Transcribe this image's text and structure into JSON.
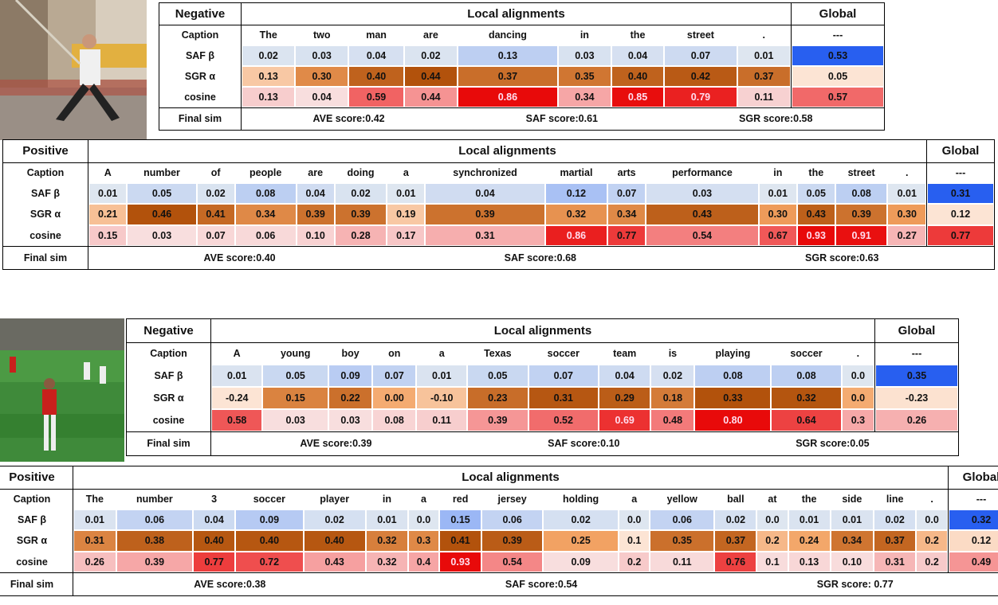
{
  "panels": [
    {
      "label": "Negative",
      "local_header": "Local alignments",
      "global_header": "Global",
      "caption_label": "Caption",
      "words": [
        "The",
        "two",
        "man",
        "are",
        "dancing",
        "in",
        "the",
        "street",
        "."
      ],
      "global_word": "---",
      "rows": [
        {
          "label": "SAF β",
          "local": [
            "0.02",
            "0.03",
            "0.04",
            "0.02",
            "0.13",
            "0.03",
            "0.04",
            "0.07",
            "0.01"
          ],
          "global": "0.53"
        },
        {
          "label": "SGR α",
          "local": [
            "0.13",
            "0.30",
            "0.40",
            "0.44",
            "0.37",
            "0.35",
            "0.40",
            "0.42",
            "0.37"
          ],
          "global": "0.05"
        },
        {
          "label": "cosine",
          "local": [
            "0.13",
            "0.04",
            "0.59",
            "0.44",
            "0.86",
            "0.34",
            "0.85",
            "0.79",
            "0.11"
          ],
          "global": "0.57"
        }
      ],
      "final_label": "Final sim",
      "scores": [
        "AVE score:0.42",
        "SAF score:0.61",
        "SGR score:0.58"
      ]
    },
    {
      "label": "Positive",
      "local_header": "Local alignments",
      "global_header": "Global",
      "caption_label": "Caption",
      "words": [
        "A",
        "number",
        "of",
        "people",
        "are",
        "doing",
        "a",
        "synchronized",
        "martial",
        "arts",
        "performance",
        "in",
        "the",
        "street",
        "."
      ],
      "global_word": "---",
      "rows": [
        {
          "label": "SAF β",
          "local": [
            "0.01",
            "0.05",
            "0.02",
            "0.08",
            "0.04",
            "0.02",
            "0.01",
            "0.04",
            "0.12",
            "0.07",
            "0.03",
            "0.01",
            "0.05",
            "0.08",
            "0.01"
          ],
          "global": "0.31"
        },
        {
          "label": "SGR α",
          "local": [
            "0.21",
            "0.46",
            "0.41",
            "0.34",
            "0.39",
            "0.39",
            "0.19",
            "0.39",
            "0.32",
            "0.34",
            "0.43",
            "0.30",
            "0.43",
            "0.39",
            "0.30"
          ],
          "global": "0.12"
        },
        {
          "label": "cosine",
          "local": [
            "0.15",
            "0.03",
            "0.07",
            "0.06",
            "0.10",
            "0.28",
            "0.17",
            "0.31",
            "0.86",
            "0.77",
            "0.54",
            "0.67",
            "0.93",
            "0.91",
            "0.27"
          ],
          "global": "0.77"
        }
      ],
      "final_label": "Final sim",
      "scores": [
        "AVE score:0.40",
        "SAF score:0.68",
        "SGR score:0.63"
      ]
    },
    {
      "label": "Negative",
      "local_header": "Local alignments",
      "global_header": "Global",
      "caption_label": "Caption",
      "words": [
        "A",
        "young",
        "boy",
        "on",
        "a",
        "Texas",
        "soccer",
        "team",
        "is",
        "playing",
        "soccer",
        "."
      ],
      "global_word": "---",
      "rows": [
        {
          "label": "SAF β",
          "local": [
            "0.01",
            "0.05",
            "0.09",
            "0.07",
            "0.01",
            "0.05",
            "0.07",
            "0.04",
            "0.02",
            "0.08",
            "0.08",
            "0.0"
          ],
          "global": "0.35"
        },
        {
          "label": "SGR α",
          "local": [
            "-0.24",
            "0.15",
            "0.22",
            "0.00",
            "-0.10",
            "0.23",
            "0.31",
            "0.29",
            "0.18",
            "0.33",
            "0.32",
            "0.0"
          ],
          "global": "-0.23"
        },
        {
          "label": "cosine",
          "local": [
            "0.58",
            "0.03",
            "0.03",
            "0.08",
            "0.11",
            "0.39",
            "0.52",
            "0.69",
            "0.48",
            "0.80",
            "0.64",
            "0.3"
          ],
          "global": "0.26"
        }
      ],
      "final_label": "Final sim",
      "scores": [
        "AVE score:0.39",
        "SAF score:0.10",
        "SGR score:0.05"
      ]
    },
    {
      "label": "Positive",
      "local_header": "Local alignments",
      "global_header": "Global",
      "caption_label": "Caption",
      "words": [
        "The",
        "number",
        "3",
        "soccer",
        "player",
        "in",
        "a",
        "red",
        "jersey",
        "holding",
        "a",
        "yellow",
        "ball",
        "at",
        "the",
        "side",
        "line",
        "."
      ],
      "global_word": "---",
      "rows": [
        {
          "label": "SAF β",
          "local": [
            "0.01",
            "0.06",
            "0.04",
            "0.09",
            "0.02",
            "0.01",
            "0.0",
            "0.15",
            "0.06",
            "0.02",
            "0.0",
            "0.06",
            "0.02",
            "0.0",
            "0.01",
            "0.01",
            "0.02",
            "0.0"
          ],
          "global": "0.32"
        },
        {
          "label": "SGR α",
          "local": [
            "0.31",
            "0.38",
            "0.40",
            "0.40",
            "0.40",
            "0.32",
            "0.3",
            "0.41",
            "0.39",
            "0.25",
            "0.1",
            "0.35",
            "0.37",
            "0.2",
            "0.24",
            "0.34",
            "0.37",
            "0.2"
          ],
          "global": "0.12"
        },
        {
          "label": "cosine",
          "local": [
            "0.26",
            "0.39",
            "0.77",
            "0.72",
            "0.43",
            "0.32",
            "0.4",
            "0.93",
            "0.54",
            "0.09",
            "0.2",
            "0.11",
            "0.76",
            "0.1",
            "0.13",
            "0.10",
            "0.31",
            "0.2"
          ],
          "global": "0.49"
        }
      ],
      "final_label": "Final sim",
      "scores": [
        "AVE score:0.38",
        "SAF score:0.54",
        "SGR score: 0.77"
      ]
    }
  ]
}
